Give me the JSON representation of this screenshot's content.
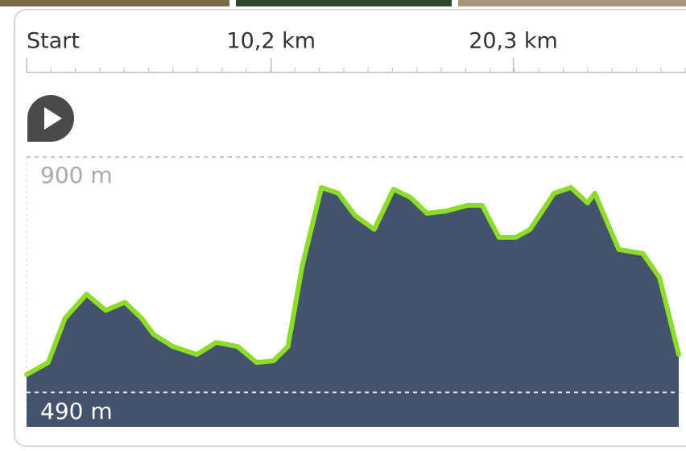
{
  "chart_data": {
    "type": "area",
    "x": [
      0,
      0.9,
      1.6,
      2.5,
      3.3,
      4.1,
      4.8,
      5.3,
      6.1,
      7.1,
      7.9,
      8.8,
      9.6,
      10.3,
      10.9,
      11.5,
      12.3,
      13.0,
      13.7,
      14.5,
      15.3,
      16.0,
      16.7,
      17.5,
      18.4,
      19.0,
      19.7,
      20.4,
      21.0,
      22.0,
      22.7,
      23.4,
      23.7,
      24.7,
      25.7,
      26.4,
      27.2
    ],
    "series": [
      {
        "color": "#8edc2a",
        "values": [
          521,
          542,
          619,
          661,
          633,
          647,
          619,
          591,
          570,
          556,
          577,
          570,
          542,
          545,
          570,
          711,
          847,
          837,
          798,
          774,
          844,
          830,
          802,
          806,
          816,
          816,
          760,
          760,
          774,
          837,
          847,
          820,
          837,
          739,
          732,
          690,
          556
        ]
      }
    ],
    "fill": "#43536b",
    "xlim": [
      0,
      27.2
    ],
    "xticks": [
      {
        "value": 0,
        "label": "Start"
      },
      {
        "value": 10.2,
        "label": "10,2 km"
      },
      {
        "value": 20.3,
        "label": "20,3 km"
      }
    ],
    "ylim": [
      430,
      900
    ],
    "yticks": [
      {
        "value": 900,
        "label": "900 m"
      },
      {
        "value": 490,
        "label": "490 m"
      }
    ],
    "grid": true
  }
}
